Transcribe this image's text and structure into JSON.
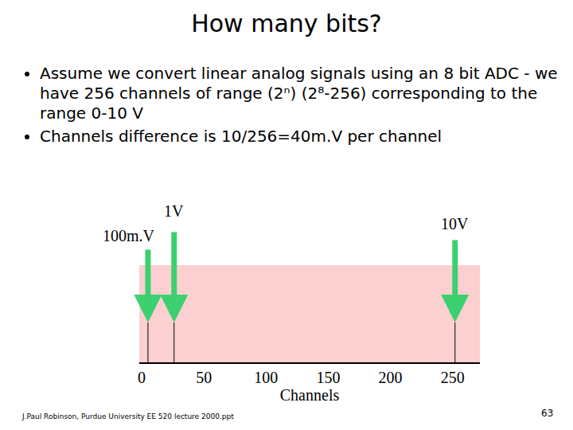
{
  "slide": {
    "title": "How many bits?",
    "bullets": [
      "Assume we convert linear analog signals using an 8 bit ADC - we have 256 channels of range (2ⁿ) (2⁸-256) corresponding to the range 0-10 V",
      "Channels difference is 10/256=40m.V per channel"
    ],
    "footer": "J.Paul Robinson, Purdue University EE 520 lecture 2000.ppt",
    "page_number": "63"
  },
  "chart_data": {
    "type": "arrows",
    "x_label": "Channels",
    "x": [
      5,
      26,
      252
    ],
    "labels": [
      "100m.V",
      "1V",
      "10V"
    ],
    "color": "#3cd070",
    "xlim": [
      -2,
      272
    ],
    "xticks": [
      0,
      50,
      100,
      150,
      200,
      250
    ],
    "grid": false
  }
}
